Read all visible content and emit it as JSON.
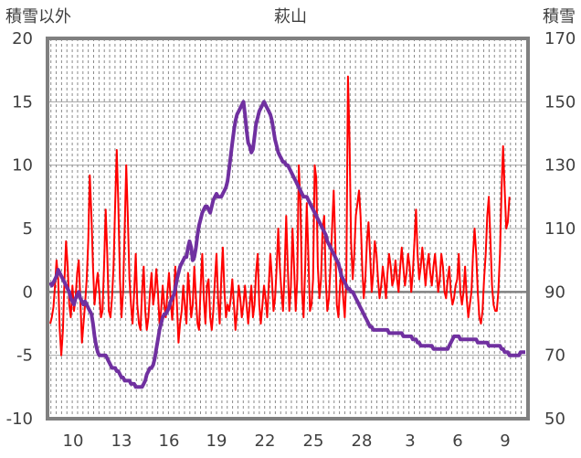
{
  "chart_data": {
    "type": "line",
    "title": "萩山",
    "ylabel_left": "積雪以外",
    "ylabel_right": "積雪",
    "ylim_left": [
      -10,
      20
    ],
    "ylim_right": [
      50,
      170
    ],
    "yticks_left": [
      "20",
      "15",
      "10",
      "5",
      "0",
      "-5",
      "-10"
    ],
    "yticks_right": [
      "170",
      "150",
      "130",
      "110",
      "90",
      "70",
      "50"
    ],
    "xticks": [
      "10",
      "13",
      "16",
      "19",
      "22",
      "25",
      "28",
      "3",
      "6",
      "9"
    ],
    "grid": true,
    "series_colors": {
      "other": "#ff0000",
      "snow": "#7030a0"
    },
    "x_days": [
      0,
      1,
      2,
      3,
      4,
      5,
      6,
      7,
      8,
      9,
      10,
      11,
      12,
      13,
      14,
      15,
      16,
      17,
      18,
      19,
      20,
      21,
      22,
      23,
      24,
      25,
      26,
      27,
      28,
      29,
      30,
      31,
      32,
      33,
      34,
      35,
      36,
      37,
      38,
      39,
      40,
      41,
      42,
      43,
      44,
      45,
      46,
      47,
      48,
      49,
      50,
      51,
      52,
      53,
      54,
      55,
      56,
      57,
      58,
      59,
      60,
      61,
      62,
      63,
      64,
      65,
      66,
      67,
      68,
      69,
      70,
      71,
      72,
      73,
      74,
      75,
      76,
      77,
      78,
      79,
      80,
      81,
      82,
      83,
      84,
      85,
      86,
      87,
      88,
      89,
      90,
      91,
      92,
      93,
      94,
      95,
      96,
      97,
      98,
      99,
      100,
      101,
      102,
      103,
      104,
      105,
      106,
      107,
      108,
      109,
      110,
      111,
      112,
      113,
      114,
      115,
      116,
      117,
      118,
      119,
      120,
      121,
      122,
      123,
      124,
      125,
      126,
      127,
      128,
      129,
      130,
      131,
      132,
      133,
      134,
      135,
      136,
      137,
      138,
      139,
      140,
      141,
      142,
      143,
      144,
      145,
      146,
      147,
      148,
      149,
      150,
      151,
      152,
      153,
      154,
      155,
      156,
      157,
      158,
      159,
      160,
      161,
      162,
      163,
      164,
      165,
      166,
      167,
      168,
      169,
      170,
      171,
      172,
      173,
      174,
      175,
      176,
      177,
      178,
      179,
      180,
      181,
      182,
      183,
      184,
      185,
      186,
      187,
      188,
      189,
      190,
      191,
      192,
      193,
      194,
      195,
      196,
      197,
      198,
      199,
      200,
      201,
      202,
      203,
      204,
      205,
      206,
      207,
      208,
      209,
      210,
      211,
      212,
      213,
      214,
      215,
      216,
      217,
      218,
      219,
      220,
      221,
      222,
      223,
      224,
      225,
      226,
      227,
      228,
      229,
      230,
      231,
      232,
      233,
      234,
      235,
      236,
      237,
      238,
      239,
      240,
      241,
      242,
      243,
      244,
      245,
      246,
      247,
      248,
      249,
      250,
      251,
      252,
      253,
      254,
      255,
      256,
      257,
      258,
      259,
      260,
      261,
      262,
      263,
      264,
      265,
      266,
      267,
      268,
      269,
      270,
      271,
      272,
      273,
      274,
      275,
      276,
      277,
      278,
      279,
      280,
      281,
      282,
      283,
      284,
      285,
      286,
      287,
      288,
      289,
      290,
      291,
      292,
      293,
      294,
      295,
      296,
      297,
      298,
      299,
      300
    ],
    "series_other": [
      -2.5,
      -2,
      -1.2,
      0.5,
      2.5,
      1,
      -3,
      -5,
      -3,
      1,
      4,
      2,
      -1,
      -2,
      0.5,
      -1.5,
      -0.5,
      1.5,
      2.5,
      -0.5,
      -4,
      -2.5,
      -1,
      1,
      4,
      9.2,
      6,
      2,
      -1,
      0.5,
      1.5,
      0,
      -2,
      -1.5,
      2,
      6.5,
      3,
      -1.5,
      -2,
      -0.5,
      2,
      7,
      11.2,
      7,
      1,
      -2,
      0,
      5,
      10,
      6,
      1,
      -1,
      -2.5,
      0,
      3,
      -1,
      -2.5,
      -3,
      0,
      2,
      -1.5,
      -3,
      -2,
      0,
      1.5,
      -1,
      0,
      1.8,
      0,
      -2.5,
      -1.5,
      0.5,
      -1,
      -2,
      0,
      1.5,
      -0.5,
      -2.2,
      -0.5,
      2,
      -1,
      -4,
      -2.5,
      -1.5,
      0.5,
      -1,
      -2.5,
      1.5,
      0,
      -2,
      -1,
      2,
      -0.5,
      -2.5,
      -3,
      0.5,
      3,
      -0.5,
      -2.5,
      0.5,
      1,
      -2,
      -3,
      -1.5,
      1,
      3,
      -0.5,
      -2.5,
      1,
      3.5,
      0,
      -2,
      -1,
      -1.5,
      -0.5,
      1,
      -1,
      -3,
      -1.5,
      0.5,
      -0.5,
      -2,
      -1,
      0.5,
      -1,
      -2.5,
      -1,
      0.5,
      -2,
      -1,
      1.5,
      3,
      -1,
      -2.5,
      -1,
      0.5,
      -0.5,
      -2,
      0.5,
      3,
      1,
      -1.5,
      -0.5,
      2,
      5,
      2,
      0,
      -1.5,
      1.5,
      6,
      2,
      -1.5,
      0.5,
      5,
      2,
      -1.5,
      1,
      10,
      7,
      0,
      -2,
      2,
      7,
      3,
      -1.5,
      -1,
      1,
      10,
      9,
      2,
      -0.5,
      1,
      5,
      6,
      1,
      -1.5,
      -0.5,
      2,
      5,
      8,
      4,
      -1,
      -2,
      0.5,
      1.8,
      -0.5,
      -2,
      1,
      17,
      12,
      4,
      1,
      3,
      6,
      7,
      8,
      6,
      2,
      -0.5,
      1,
      4,
      5.5,
      3,
      0,
      1.5,
      4,
      3,
      1,
      -0.5,
      0.5,
      2,
      1,
      -0.5,
      1.5,
      3,
      2,
      0.5,
      1,
      2.5,
      1,
      0,
      2,
      3.5,
      2,
      0.5,
      1.5,
      3,
      2,
      0,
      1.5,
      4,
      6.5,
      3,
      1,
      2,
      3.5,
      2,
      0.5,
      2,
      3,
      1.5,
      0.5,
      2,
      3,
      1.5,
      0,
      1,
      3,
      2,
      0,
      -0.5,
      1,
      2,
      0,
      -1,
      -0.5,
      0.5,
      1,
      3,
      0,
      -1,
      0,
      2,
      -0.5,
      -2,
      -1,
      0,
      3,
      5,
      3,
      0,
      -2,
      -2.5,
      -1.5,
      1,
      3,
      6,
      7.5,
      4,
      0.5,
      -1,
      -1.5,
      -1.5,
      0,
      3,
      8,
      11.5,
      8,
      5,
      5.5,
      7.5
    ],
    "series_snow": [
      93,
      92,
      93,
      94,
      95,
      97,
      96,
      95,
      94,
      93,
      92,
      91,
      90,
      88,
      87,
      86,
      88,
      89,
      90,
      88,
      87,
      86,
      87,
      86,
      85,
      84,
      83,
      80,
      76,
      73,
      71,
      70,
      70,
      70,
      70,
      70,
      69,
      68,
      67,
      66,
      66,
      66,
      65,
      65,
      64,
      63,
      63,
      62,
      62,
      62,
      62,
      61,
      61,
      61,
      60,
      60,
      60,
      60,
      60,
      61,
      62,
      64,
      65,
      66,
      66,
      67,
      69,
      72,
      75,
      78,
      80,
      82,
      83,
      83,
      84,
      85,
      87,
      88,
      89,
      91,
      94,
      96,
      98,
      99,
      100,
      101,
      101,
      104,
      106,
      104,
      100,
      101,
      104,
      108,
      111,
      113,
      115,
      116,
      117,
      117,
      116,
      115,
      117,
      119,
      120,
      121,
      120,
      120,
      120,
      121,
      122,
      123,
      125,
      129,
      133,
      137,
      141,
      144,
      146,
      147,
      148,
      149,
      150,
      146,
      141,
      137,
      136,
      134,
      135,
      139,
      143,
      145,
      147,
      148,
      149,
      150,
      149,
      148,
      147,
      146,
      144,
      141,
      138,
      136,
      134,
      133,
      132,
      131,
      131,
      130,
      130,
      129,
      128,
      127,
      126,
      125,
      124,
      123,
      122,
      121,
      120,
      120,
      120,
      119,
      118,
      117,
      116,
      115,
      114,
      113,
      112,
      111,
      110,
      109,
      108,
      106,
      105,
      104,
      103,
      102,
      101,
      100,
      99,
      97,
      95,
      94,
      93,
      92,
      91,
      91,
      90,
      90,
      89,
      88,
      87,
      86,
      85,
      84,
      83,
      82,
      81,
      80,
      79,
      79,
      78,
      78,
      78,
      78,
      78,
      78,
      78,
      78,
      78,
      78,
      77,
      77,
      77,
      77,
      77,
      77,
      77,
      77,
      77,
      76,
      76,
      76,
      76,
      76,
      76,
      75,
      75,
      75,
      74,
      74,
      73,
      73,
      73,
      73,
      73,
      73,
      73,
      73,
      72,
      72,
      72,
      72,
      72,
      72,
      72,
      72,
      72,
      72,
      73,
      74,
      75,
      76,
      76,
      76,
      76,
      75,
      75,
      75,
      75,
      75,
      75,
      75,
      75,
      75,
      75,
      75,
      74,
      74,
      74,
      74,
      74,
      74,
      74,
      73,
      73,
      73,
      73,
      73,
      73,
      73,
      73,
      72,
      72,
      71,
      71,
      71,
      70,
      70,
      70,
      70,
      70,
      70,
      70,
      71,
      71,
      71,
      71,
      70,
      70,
      70,
      70,
      69,
      69,
      69,
      69,
      68,
      68,
      68,
      68,
      69,
      70
    ]
  }
}
